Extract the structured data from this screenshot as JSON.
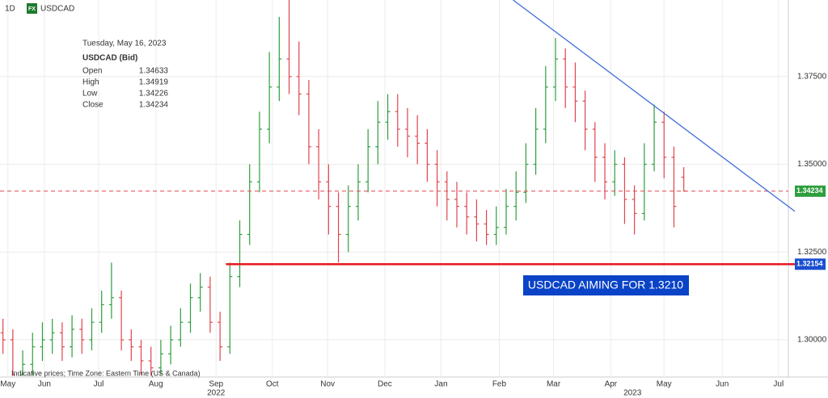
{
  "chart_data": {
    "type": "ohlc",
    "timeframe": "1D",
    "badge": "FX",
    "symbol": "USDCAD",
    "info_date": "Tuesday, May 16, 2023",
    "info_title": "USDCAD (Bid)",
    "info_labels": [
      "Open",
      "High",
      "Low",
      "Close"
    ],
    "footnote": "Indicative prices; Time Zone: Eastern Time (US & Canada)",
    "annotation": "USDCAD AIMING FOR 1.3210",
    "up_color": "#2e9e3e",
    "down_color": "#e0454d",
    "open": [
      1.302,
      1.3,
      1.29,
      1.293,
      1.298,
      1.3,
      1.302,
      1.298,
      1.303,
      1.3,
      1.305,
      1.31,
      1.312,
      1.3,
      1.298,
      1.294,
      1.292,
      1.296,
      1.3,
      1.305,
      1.312,
      1.315,
      1.305,
      1.298,
      1.318,
      1.33,
      1.345,
      1.36,
      1.372,
      1.38,
      1.375,
      1.37,
      1.355,
      1.345,
      1.338,
      1.33,
      1.338,
      1.345,
      1.355,
      1.362,
      1.365,
      1.36,
      1.358,
      1.356,
      1.35,
      1.345,
      1.34,
      1.338,
      1.335,
      1.333,
      1.33,
      1.332,
      1.338,
      1.342,
      1.35,
      1.36,
      1.372,
      1.38,
      1.372,
      1.368,
      1.36,
      1.352,
      1.345,
      1.35,
      1.34,
      1.336,
      1.35,
      1.362,
      1.352,
      1.34633
    ],
    "high": [
      1.306,
      1.303,
      1.297,
      1.302,
      1.305,
      1.306,
      1.305,
      1.307,
      1.306,
      1.309,
      1.314,
      1.322,
      1.314,
      1.303,
      1.3,
      1.298,
      1.3,
      1.304,
      1.309,
      1.316,
      1.319,
      1.318,
      1.308,
      1.322,
      1.334,
      1.35,
      1.365,
      1.382,
      1.392,
      1.397,
      1.385,
      1.374,
      1.36,
      1.35,
      1.342,
      1.344,
      1.35,
      1.36,
      1.368,
      1.37,
      1.37,
      1.366,
      1.364,
      1.36,
      1.354,
      1.348,
      1.345,
      1.342,
      1.34,
      1.337,
      1.338,
      1.343,
      1.348,
      1.356,
      1.366,
      1.378,
      1.386,
      1.383,
      1.379,
      1.371,
      1.362,
      1.356,
      1.354,
      1.352,
      1.344,
      1.356,
      1.367,
      1.365,
      1.355,
      1.34919
    ],
    "low": [
      1.296,
      1.2898,
      1.2898,
      1.29,
      1.294,
      1.296,
      1.294,
      1.295,
      1.296,
      1.297,
      1.302,
      1.306,
      1.297,
      1.294,
      1.29,
      1.2898,
      1.29,
      1.293,
      1.298,
      1.302,
      1.308,
      1.302,
      1.294,
      1.296,
      1.315,
      1.327,
      1.342,
      1.356,
      1.368,
      1.37,
      1.364,
      1.35,
      1.34,
      1.33,
      1.322,
      1.325,
      1.334,
      1.342,
      1.35,
      1.357,
      1.355,
      1.352,
      1.35,
      1.345,
      1.338,
      1.334,
      1.332,
      1.33,
      1.328,
      1.327,
      1.327,
      1.33,
      1.334,
      1.339,
      1.347,
      1.356,
      1.368,
      1.366,
      1.362,
      1.354,
      1.345,
      1.34,
      1.341,
      1.333,
      1.33,
      1.334,
      1.348,
      1.346,
      1.332,
      1.34226
    ],
    "close": [
      1.3,
      1.29,
      1.293,
      1.298,
      1.3,
      1.302,
      1.298,
      1.303,
      1.3,
      1.305,
      1.31,
      1.312,
      1.3,
      1.298,
      1.294,
      1.292,
      1.296,
      1.3,
      1.305,
      1.312,
      1.315,
      1.305,
      1.298,
      1.318,
      1.33,
      1.345,
      1.36,
      1.372,
      1.38,
      1.375,
      1.37,
      1.355,
      1.345,
      1.338,
      1.33,
      1.338,
      1.345,
      1.355,
      1.362,
      1.365,
      1.36,
      1.358,
      1.356,
      1.35,
      1.345,
      1.34,
      1.338,
      1.335,
      1.333,
      1.33,
      1.332,
      1.338,
      1.342,
      1.35,
      1.36,
      1.372,
      1.38,
      1.372,
      1.368,
      1.36,
      1.352,
      1.345,
      1.35,
      1.34,
      1.336,
      1.35,
      1.362,
      1.352,
      1.338,
      1.34234
    ],
    "xlim": [
      -0.3,
      79.6
    ],
    "xticks": [
      {
        "value": 0.5,
        "label": "May"
      },
      {
        "value": 4.2,
        "label": "Jun"
      },
      {
        "value": 9.7,
        "label": "Jul"
      },
      {
        "value": 15.5,
        "label": "Aug"
      },
      {
        "value": 21.6,
        "label": "Sep"
      },
      {
        "value": 27.3,
        "label": "Oct"
      },
      {
        "value": 32.9,
        "label": "Nov"
      },
      {
        "value": 38.7,
        "label": "Dec"
      },
      {
        "value": 44.4,
        "label": "Jan"
      },
      {
        "value": 50.3,
        "label": "Feb"
      },
      {
        "value": 55.8,
        "label": "Mar"
      },
      {
        "value": 61.6,
        "label": "Apr"
      },
      {
        "value": 67.0,
        "label": "May"
      },
      {
        "value": 72.9,
        "label": "Jun"
      },
      {
        "value": 78.6,
        "label": "Jul"
      }
    ],
    "year_ticks": [
      {
        "value": 21.6,
        "label": "2022"
      },
      {
        "value": 63.8,
        "label": "2023"
      }
    ],
    "ylim": [
      1.2894,
      1.3968
    ],
    "yticks": [
      {
        "value": 1.3,
        "label": "1.30000"
      },
      {
        "value": 1.325,
        "label": "1.32500"
      },
      {
        "value": 1.35,
        "label": "1.35000"
      },
      {
        "value": 1.375,
        "label": "1.37500"
      }
    ],
    "grid": true,
    "trendline": {
      "color": "#3b6fd8",
      "x": [
        51.7,
        79.6
      ],
      "y": [
        1.3968,
        1.3366
      ]
    },
    "support": {
      "color": "#e8171f",
      "label_color": "#1a4fd0",
      "x": [
        22.6,
        79.6
      ],
      "value": 1.32154
    }
  }
}
